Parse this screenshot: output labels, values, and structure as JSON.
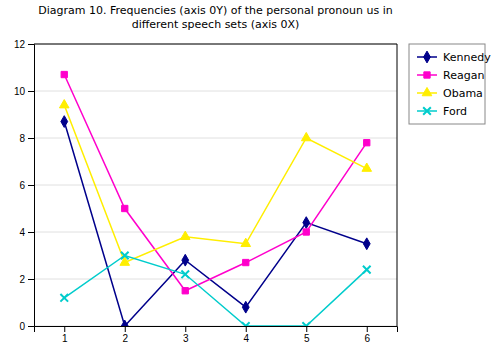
{
  "chart_data": {
    "type": "line",
    "title": "Diagram 10. Frequencies (axis 0Y) of the personal pronoun us  in\ndifferent speech sets (axis 0X)",
    "x": [
      1,
      2,
      3,
      4,
      5,
      6
    ],
    "series": [
      {
        "name": "Kennedy",
        "color": "#00008B",
        "marker": "diamond",
        "values": [
          8.7,
          0,
          2.8,
          0.8,
          4.4,
          3.5
        ]
      },
      {
        "name": "Reagan",
        "color": "#FF00CC",
        "marker": "square",
        "values": [
          10.7,
          5.0,
          1.5,
          2.7,
          4.0,
          7.8
        ]
      },
      {
        "name": "Obama",
        "color": "#FFEE00",
        "marker": "triangle",
        "values": [
          9.4,
          2.7,
          3.8,
          3.5,
          8.0,
          6.7
        ]
      },
      {
        "name": "Ford",
        "color": "#00CCCC",
        "marker": "x",
        "values": [
          1.2,
          3.0,
          2.2,
          0.0,
          0.0,
          2.4
        ]
      }
    ],
    "xlim": [
      0.5,
      6.5
    ],
    "xticks": [
      1,
      2,
      3,
      4,
      5,
      6
    ],
    "ylim": [
      0,
      12
    ],
    "yticks": [
      0,
      2,
      4,
      6,
      8,
      10,
      12
    ],
    "grid": true,
    "legend": "right"
  }
}
